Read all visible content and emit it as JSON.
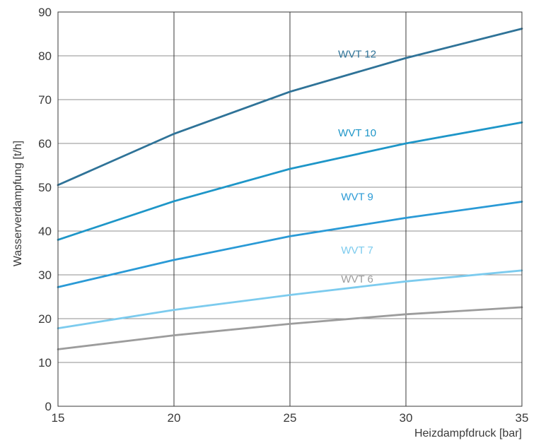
{
  "chart_data": {
    "type": "line",
    "xlabel": "Heizdampfdruck [bar]",
    "ylabel": "Wasserverdampfung [t/h]",
    "xlim": [
      15,
      35
    ],
    "ylim": [
      0,
      90
    ],
    "xticks": [
      15,
      20,
      25,
      30,
      35
    ],
    "yticks": [
      0,
      10,
      20,
      30,
      40,
      50,
      60,
      70,
      80,
      90
    ],
    "grid": true,
    "x": [
      15,
      20,
      25,
      30,
      35
    ],
    "series": [
      {
        "name": "WVT 12",
        "color": "#2f7398",
        "values": [
          50.5,
          62.2,
          71.8,
          79.5,
          86.2
        ]
      },
      {
        "name": "WVT 10",
        "color": "#1e96c8",
        "values": [
          38.0,
          46.8,
          54.2,
          60.0,
          64.8
        ]
      },
      {
        "name": "WVT 9",
        "color": "#2a9ad6",
        "values": [
          27.2,
          33.4,
          38.8,
          43.0,
          46.7
        ]
      },
      {
        "name": "WVT 7",
        "color": "#7ccbee",
        "values": [
          17.8,
          22.0,
          25.4,
          28.5,
          31.0
        ]
      },
      {
        "name": "WVT 6",
        "color": "#9c9c9c",
        "values": [
          13.0,
          16.2,
          18.8,
          21.0,
          22.6
        ]
      }
    ]
  }
}
